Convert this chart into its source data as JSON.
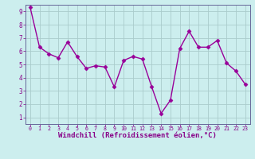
{
  "x": [
    0,
    1,
    2,
    3,
    4,
    5,
    6,
    7,
    8,
    9,
    10,
    11,
    12,
    13,
    14,
    15,
    16,
    17,
    18,
    19,
    20,
    21,
    22,
    23
  ],
  "y": [
    9.3,
    6.3,
    5.8,
    5.5,
    6.7,
    5.6,
    4.7,
    4.9,
    4.8,
    3.3,
    5.3,
    5.6,
    5.4,
    3.3,
    1.3,
    2.3,
    6.2,
    7.5,
    6.3,
    6.3,
    6.8,
    5.1,
    4.5,
    3.5
  ],
  "line_color": "#990099",
  "marker": "D",
  "marker_size": 2.5,
  "linewidth": 1.0,
  "bg_color": "#cceeee",
  "grid_color": "#aacccc",
  "xlabel": "Windchill (Refroidissement éolien,°C)",
  "xlabel_fontsize": 6.5,
  "tick_label_color": "#880088",
  "axis_label_color": "#880088",
  "spine_color": "#666699",
  "xlim": [
    -0.5,
    23.5
  ],
  "ylim": [
    0.5,
    9.5
  ],
  "yticks": [
    1,
    2,
    3,
    4,
    5,
    6,
    7,
    8,
    9
  ],
  "xticks": [
    0,
    1,
    2,
    3,
    4,
    5,
    6,
    7,
    8,
    9,
    10,
    11,
    12,
    13,
    14,
    15,
    16,
    17,
    18,
    19,
    20,
    21,
    22,
    23
  ]
}
